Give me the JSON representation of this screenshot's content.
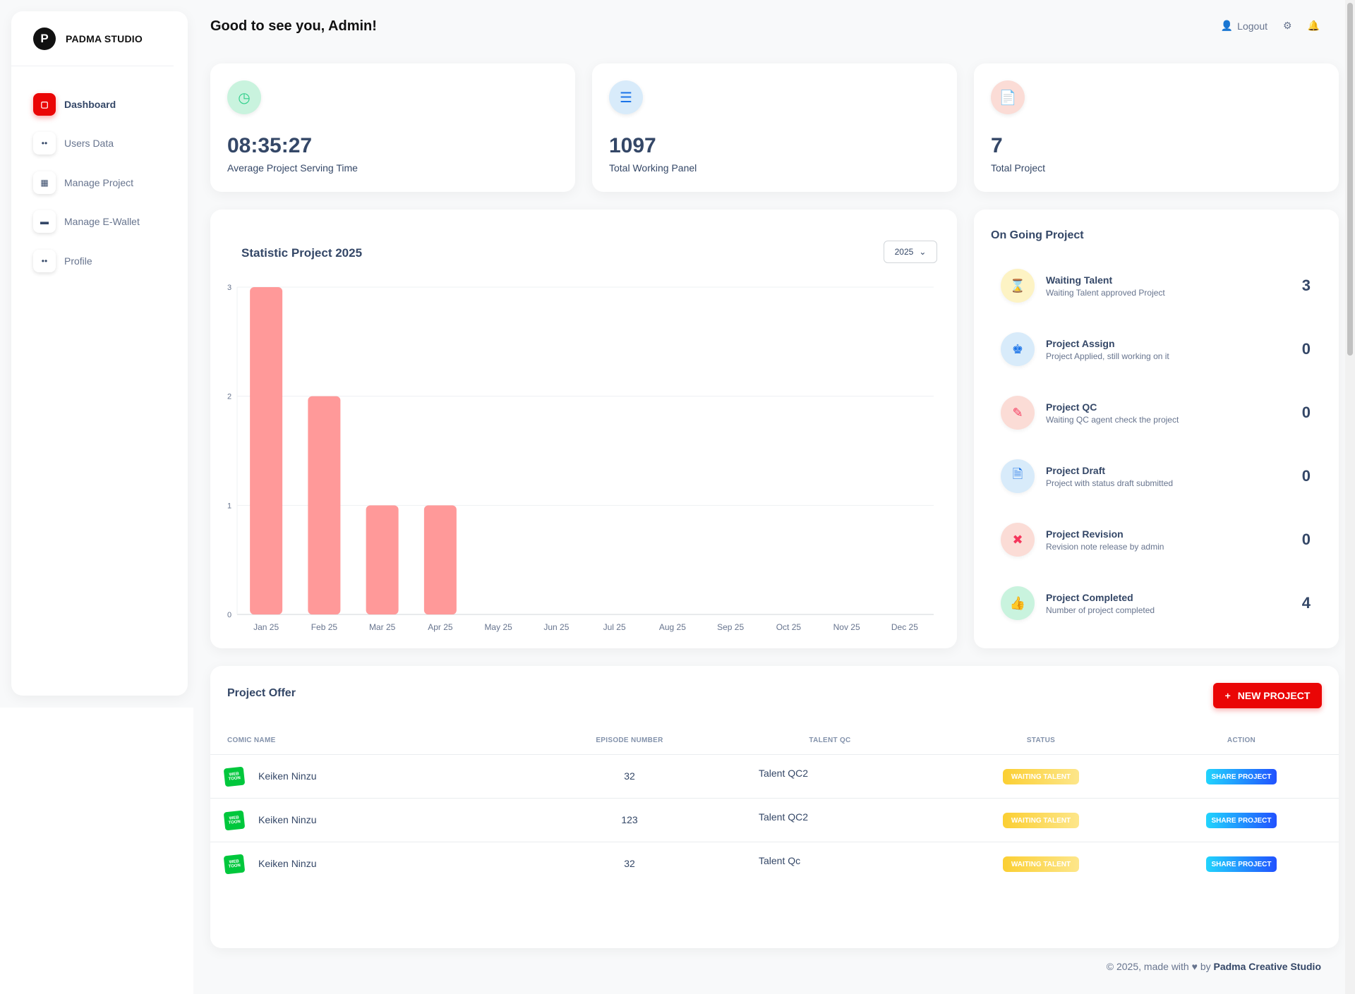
{
  "brand": {
    "name": "PADMA STUDIO"
  },
  "sidebar": {
    "items": [
      {
        "label": "Dashboard",
        "icon": "store-icon",
        "active": true
      },
      {
        "label": "Users Data",
        "icon": "users-icon",
        "active": false
      },
      {
        "label": "Manage Project",
        "icon": "chart-icon",
        "active": false
      },
      {
        "label": "Manage E-Wallet",
        "icon": "wallet-icon",
        "active": false
      },
      {
        "label": "Profile",
        "icon": "user-icon",
        "active": false
      }
    ]
  },
  "header": {
    "greeting": "Good to see you, Admin!",
    "logout_label": "Logout"
  },
  "stats": [
    {
      "value": "08:35:27",
      "label": "Average Project Serving Time",
      "icon": "clock-icon",
      "color": "#2dce89"
    },
    {
      "value": "1097",
      "label": "Total Working Panel",
      "icon": "list-icon",
      "color": "#11cdef"
    },
    {
      "value": "7",
      "label": "Total Project",
      "icon": "file-icon",
      "color": "#f5365c"
    }
  ],
  "chart": {
    "title": "Statistic Project 2025",
    "year_select": "2025"
  },
  "chart_data": {
    "type": "bar",
    "title": "Statistic Project 2025",
    "categories": [
      "Jan 25",
      "Feb 25",
      "Mar 25",
      "Apr 25",
      "May 25",
      "Jun 25",
      "Jul 25",
      "Aug 25",
      "Sep 25",
      "Oct 25",
      "Nov 25",
      "Dec 25"
    ],
    "values": [
      3,
      2,
      1,
      1,
      0,
      0,
      0,
      0,
      0,
      0,
      0,
      0
    ],
    "ylim": [
      0,
      3
    ],
    "yticks": [
      "0",
      "1",
      "2",
      "3"
    ],
    "grid": true,
    "bar_color": "#ff9999"
  },
  "ongoing": {
    "title": "On Going Project",
    "items": [
      {
        "name": "Waiting Talent",
        "desc": "Waiting Talent approved Project",
        "count": "3",
        "icon": "hourglass-icon",
        "color": "#fbcf33"
      },
      {
        "name": "Project Assign",
        "desc": "Project Applied, still working on it",
        "count": "0",
        "icon": "chess-icon",
        "color": "#5e72e4"
      },
      {
        "name": "Project QC",
        "desc": "Waiting QC agent check the project",
        "count": "0",
        "icon": "edit-icon",
        "color": "#f5365c"
      },
      {
        "name": "Project Draft",
        "desc": "Project with status draft submitted",
        "count": "0",
        "icon": "document-icon",
        "color": "#11cdef"
      },
      {
        "name": "Project Revision",
        "desc": "Revision note release by admin",
        "count": "0",
        "icon": "file-x-icon",
        "color": "#f5365c"
      },
      {
        "name": "Project Completed",
        "desc": "Number of project completed",
        "count": "4",
        "icon": "thumbs-up-icon",
        "color": "#2dce89"
      }
    ]
  },
  "offers": {
    "title": "Project Offer",
    "new_button": "NEW PROJECT",
    "columns": [
      "COMIC NAME",
      "EPISODE NUMBER",
      "TALENT QC",
      "STATUS",
      "ACTION"
    ],
    "rows": [
      {
        "comic": "Keiken Ninzu",
        "logo": "WEB TOON",
        "episode": "32",
        "talent": "Talent QC2",
        "status": "WAITING TALENT",
        "action": "SHARE PROJECT"
      },
      {
        "comic": "Keiken Ninzu",
        "logo": "WEB TOON",
        "episode": "123",
        "talent": "Talent QC2",
        "status": "WAITING TALENT",
        "action": "SHARE PROJECT"
      },
      {
        "comic": "Keiken Ninzu",
        "logo": "WEB TOON",
        "episode": "32",
        "talent": "Talent Qc",
        "status": "WAITING TALENT",
        "action": "SHARE PROJECT"
      }
    ]
  },
  "footer": {
    "prefix": "© 2025, made with",
    "middle": "by",
    "studio": "Padma Creative Studio"
  }
}
